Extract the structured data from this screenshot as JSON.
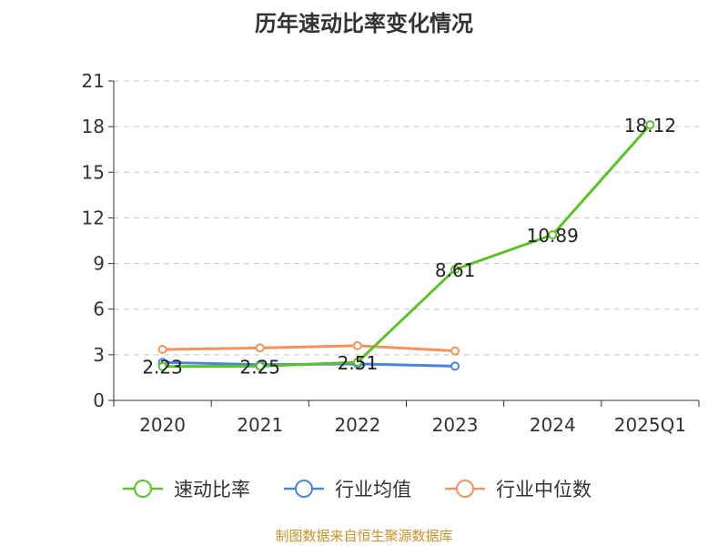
{
  "chart_data": {
    "type": "line",
    "title": "历年速动比率变化情况",
    "categories": [
      "2020",
      "2021",
      "2022",
      "2023",
      "2024",
      "2025Q1"
    ],
    "ylim": [
      0,
      21
    ],
    "yticks": [
      0,
      3,
      6,
      9,
      12,
      15,
      18,
      21
    ],
    "grid": true,
    "legend_position": "bottom",
    "series": [
      {
        "name": "速动比率",
        "color": "#5cc22a",
        "values": [
          2.23,
          2.25,
          2.51,
          8.61,
          10.89,
          18.12
        ],
        "labels": [
          "2.23",
          "2.25",
          "2.51",
          "8.61",
          "10.89",
          "18.12"
        ]
      },
      {
        "name": "行业均值",
        "color": "#4a86e0",
        "values": [
          2.5,
          2.35,
          2.4,
          2.25,
          null,
          null
        ]
      },
      {
        "name": "行业中位数",
        "color": "#f5935e",
        "values": [
          3.35,
          3.45,
          3.6,
          3.25,
          null,
          null
        ]
      }
    ]
  },
  "source_note": "制图数据来自恒生聚源数据库"
}
